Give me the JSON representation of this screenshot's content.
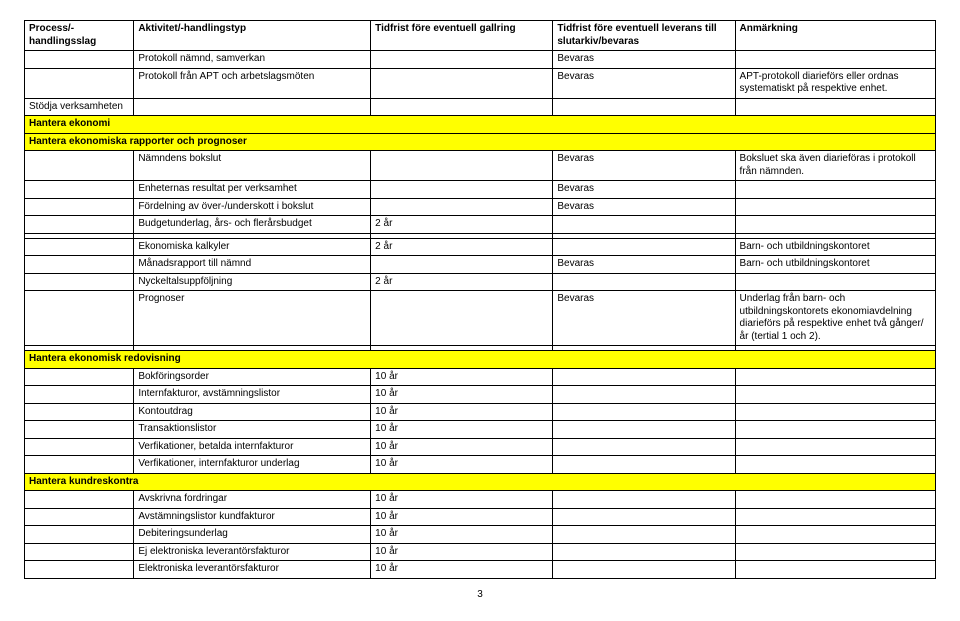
{
  "columns": [
    "Process/-\nhandlingsslag",
    "Aktivitet/-handlingstyp",
    "Tidfrist före eventuell gallring",
    "Tidfrist före eventuell leverans till slutarkiv/bevaras",
    "Anmärkning"
  ],
  "rows": [
    {
      "type": "data",
      "cells": [
        "",
        "Protokoll nämnd, samverkan",
        "",
        "Bevaras",
        ""
      ]
    },
    {
      "type": "data",
      "cells": [
        "",
        "Protokoll från APT och arbetslagsmöten",
        "",
        "Bevaras",
        "APT-protokoll diarieförs eller ordnas systematiskt på respektive enhet."
      ]
    },
    {
      "type": "data",
      "cells": [
        "Stödja verksamheten",
        "",
        "",
        "",
        ""
      ]
    },
    {
      "type": "section",
      "label": "Hantera ekonomi"
    },
    {
      "type": "section",
      "label": "Hantera ekonomiska rapporter och prognoser"
    },
    {
      "type": "data",
      "cells": [
        "",
        "Nämndens bokslut",
        "",
        "Bevaras",
        "Boksluet ska även diarieföras i protokoll från nämnden."
      ]
    },
    {
      "type": "data",
      "cells": [
        "",
        "Enheternas resultat per verksamhet",
        "",
        "Bevaras",
        ""
      ]
    },
    {
      "type": "data",
      "cells": [
        "",
        "Fördelning av över-/underskott i bokslut",
        "",
        "Bevaras",
        ""
      ]
    },
    {
      "type": "data",
      "cells": [
        "",
        "Budgetunderlag, års- och flerårsbudget",
        "2 år",
        "",
        ""
      ]
    },
    {
      "type": "data",
      "cells": [
        "",
        "",
        "",
        "",
        ""
      ]
    },
    {
      "type": "data",
      "cells": [
        "",
        "Ekonomiska kalkyler",
        "2 år",
        "",
        "Barn- och utbildningskontoret"
      ]
    },
    {
      "type": "data",
      "cells": [
        "",
        "Månadsrapport till nämnd",
        "",
        "Bevaras",
        "Barn- och utbildningskontoret"
      ]
    },
    {
      "type": "data",
      "cells": [
        "",
        "Nyckeltalsuppföljning",
        "2 år",
        "",
        ""
      ]
    },
    {
      "type": "data",
      "cells": [
        "",
        "Prognoser",
        "",
        "Bevaras",
        "Underlag från barn- och utbildningskontorets ekonomiavdelning diarieförs på respektive enhet två gånger/år (tertial 1 och 2)."
      ]
    },
    {
      "type": "data",
      "cells": [
        "",
        "",
        "",
        "",
        ""
      ]
    },
    {
      "type": "section",
      "label": "Hantera ekonomisk redovisning"
    },
    {
      "type": "data",
      "cells": [
        "",
        "Bokföringsorder",
        "10 år",
        "",
        ""
      ]
    },
    {
      "type": "data",
      "cells": [
        "",
        "Internfakturor, avstämningslistor",
        "10 år",
        "",
        ""
      ]
    },
    {
      "type": "data",
      "cells": [
        "",
        "Kontoutdrag",
        "10 år",
        "",
        ""
      ]
    },
    {
      "type": "data",
      "cells": [
        "",
        "Transaktionslistor",
        "10 år",
        "",
        ""
      ]
    },
    {
      "type": "data",
      "cells": [
        "",
        "Verfikationer, betalda internfakturor",
        "10 år",
        "",
        ""
      ]
    },
    {
      "type": "data",
      "cells": [
        "",
        "Verfikationer, internfakturor underlag",
        "10 år",
        "",
        ""
      ]
    },
    {
      "type": "section",
      "label": "Hantera kundreskontra"
    },
    {
      "type": "data",
      "cells": [
        "",
        "Avskrivna fordringar",
        "10 år",
        "",
        ""
      ]
    },
    {
      "type": "data",
      "cells": [
        "",
        "Avstämningslistor kundfakturor",
        "10 år",
        "",
        ""
      ]
    },
    {
      "type": "data",
      "cells": [
        "",
        "Debiteringsunderlag",
        "10 år",
        "",
        ""
      ]
    },
    {
      "type": "data",
      "cells": [
        "",
        "Ej elektroniska leverantörsfakturor",
        "10 år",
        "",
        ""
      ]
    },
    {
      "type": "data",
      "cells": [
        "",
        "Elektroniska leverantörsfakturor",
        "10 år",
        "",
        ""
      ]
    }
  ],
  "pageNumber": "3",
  "style": {
    "section_bg": "#ffff00",
    "border_color": "#000000",
    "font_family": "Arial",
    "base_font_size_pt": 10
  }
}
